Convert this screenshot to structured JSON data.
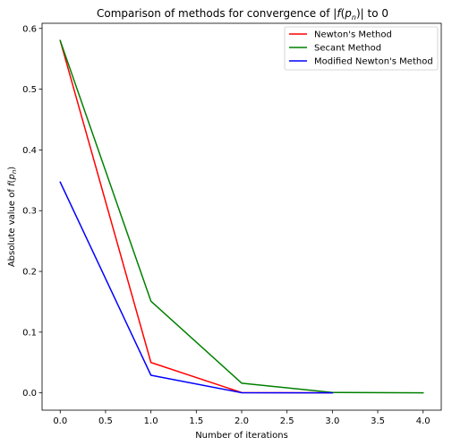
{
  "chart_data": {
    "type": "line",
    "title_prefix": "Comparison of methods for convergence of ",
    "title_math_open": "|",
    "title_math_f": "f",
    "title_math_paren_open": "(",
    "title_math_p": "p",
    "title_math_sub": "n",
    "title_math_paren_close": ")",
    "title_math_close": "|",
    "title_suffix": " to 0",
    "xlabel": "Number of iterations",
    "ylabel_prefix": "Absolute value of ",
    "ylabel_math_f": "f",
    "ylabel_math_open": "(",
    "ylabel_math_p": "p",
    "ylabel_math_sub": "n",
    "ylabel_math_close": ")",
    "xlim": [
      -0.2,
      4.2
    ],
    "ylim": [
      -0.0285,
      0.6085
    ],
    "xticks": [
      0.0,
      0.5,
      1.0,
      1.5,
      2.0,
      2.5,
      3.0,
      3.5,
      4.0
    ],
    "xtick_labels": [
      "0.0",
      "0.5",
      "1.0",
      "1.5",
      "2.0",
      "2.5",
      "3.0",
      "3.5",
      "4.0"
    ],
    "yticks": [
      0.0,
      0.1,
      0.2,
      0.3,
      0.4,
      0.5,
      0.6
    ],
    "ytick_labels": [
      "0.0",
      "0.1",
      "0.2",
      "0.3",
      "0.4",
      "0.5",
      "0.6"
    ],
    "grid": false,
    "legend_position": "top-right",
    "series": [
      {
        "name": "Newton's Method",
        "color": "#ff0000",
        "x": [
          0,
          1,
          2,
          3
        ],
        "values": [
          0.58,
          0.05,
          0.0005,
          0.0
        ]
      },
      {
        "name": "Secant Method",
        "color": "#008000",
        "x": [
          0,
          1,
          2,
          3,
          4
        ],
        "values": [
          0.58,
          0.151,
          0.016,
          0.0007,
          0.0
        ]
      },
      {
        "name": "Modified Newton's Method",
        "color": "#0000ff",
        "x": [
          0,
          1,
          2,
          3
        ],
        "values": [
          0.347,
          0.029,
          0.0003,
          0.0
        ]
      }
    ]
  }
}
